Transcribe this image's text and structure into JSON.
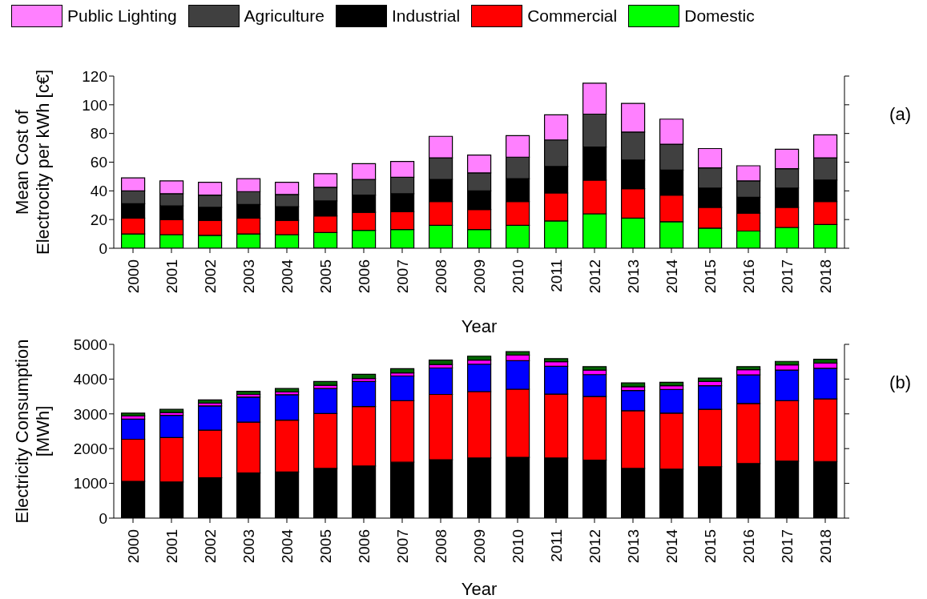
{
  "chart_data": [
    {
      "type": "bar",
      "stacked": true,
      "ylabel": "Mean Cost of\nElectrocity per kWh [c€]",
      "xlabel": "Year",
      "legend": "top",
      "annotations": [
        "(a)"
      ],
      "categories": [
        "2000",
        "2001",
        "2002",
        "2003",
        "2004",
        "2005",
        "2006",
        "2007",
        "2008",
        "2009",
        "2010",
        "2011",
        "2012",
        "2013",
        "2014",
        "2015",
        "2016",
        "2017",
        "2018"
      ],
      "ylim": [
        0,
        120
      ],
      "yticks": [
        0,
        20,
        40,
        60,
        80,
        100,
        120
      ],
      "series": [
        {
          "name": "Domestic",
          "color": "#00ff00",
          "values": [
            10,
            9.5,
            9,
            10,
            9.5,
            11,
            12.5,
            13,
            16,
            13,
            16,
            19,
            24,
            21,
            18.5,
            14,
            12,
            14.5,
            16.5
          ]
        },
        {
          "name": "Commercial",
          "color": "#ff0000",
          "values": [
            11,
            10.5,
            10.5,
            11,
            10,
            11.5,
            12.5,
            12.5,
            16.5,
            14,
            16.5,
            19.5,
            23.5,
            20.5,
            18.5,
            14.5,
            12.5,
            14,
            16
          ]
        },
        {
          "name": "Industrial",
          "color": "#000000",
          "values": [
            10,
            9.5,
            9,
            9.5,
            9.5,
            10.5,
            12,
            12.5,
            15.5,
            13,
            16,
            18.5,
            23,
            20,
            17.5,
            13.5,
            11,
            13.5,
            15
          ]
        },
        {
          "name": "Agriculture",
          "color": "#404040",
          "values": [
            9,
            8.5,
            8.5,
            9,
            8.5,
            9.5,
            11,
            11.5,
            15,
            12.5,
            15,
            18.5,
            23,
            19.5,
            18,
            14,
            11.5,
            13.5,
            15.5
          ]
        },
        {
          "name": "Public Lighting",
          "color": "#ff80ff",
          "values": [
            9,
            9,
            9,
            9,
            8.5,
            9.5,
            11,
            11,
            15,
            12.5,
            15,
            17.5,
            21.5,
            20,
            17.5,
            13.5,
            10.5,
            13.5,
            16
          ]
        }
      ]
    },
    {
      "type": "bar",
      "stacked": true,
      "ylabel": "Electricity Consumption\n[MWh]",
      "xlabel": "Year",
      "annotations": [
        "(b)"
      ],
      "categories": [
        "2000",
        "2001",
        "2002",
        "2003",
        "2004",
        "2005",
        "2006",
        "2007",
        "2008",
        "2009",
        "2010",
        "2011",
        "2012",
        "2013",
        "2014",
        "2015",
        "2016",
        "2017",
        "2018"
      ],
      "ylim": [
        0,
        5000
      ],
      "yticks": [
        0,
        1000,
        2000,
        3000,
        4000,
        5000
      ],
      "series": [
        {
          "color": "#000000",
          "values": [
            1060,
            1040,
            1160,
            1300,
            1330,
            1430,
            1500,
            1610,
            1680,
            1730,
            1750,
            1730,
            1670,
            1430,
            1410,
            1480,
            1570,
            1640,
            1630
          ]
        },
        {
          "color": "#ff0000",
          "values": [
            1210,
            1280,
            1370,
            1460,
            1490,
            1580,
            1710,
            1770,
            1880,
            1910,
            1960,
            1840,
            1830,
            1660,
            1610,
            1650,
            1730,
            1740,
            1800
          ]
        },
        {
          "color": "#0000ff",
          "values": [
            580,
            640,
            700,
            720,
            730,
            720,
            720,
            710,
            760,
            790,
            820,
            800,
            630,
            580,
            680,
            680,
            820,
            880,
            880
          ]
        },
        {
          "color": "#ff00ff",
          "values": [
            90,
            80,
            80,
            80,
            80,
            90,
            90,
            90,
            100,
            120,
            160,
            130,
            130,
            110,
            110,
            120,
            150,
            150,
            150
          ]
        },
        {
          "color": "#006400",
          "values": [
            80,
            90,
            90,
            90,
            100,
            110,
            120,
            120,
            130,
            110,
            100,
            90,
            100,
            110,
            100,
            100,
            90,
            100,
            110
          ]
        }
      ]
    }
  ]
}
